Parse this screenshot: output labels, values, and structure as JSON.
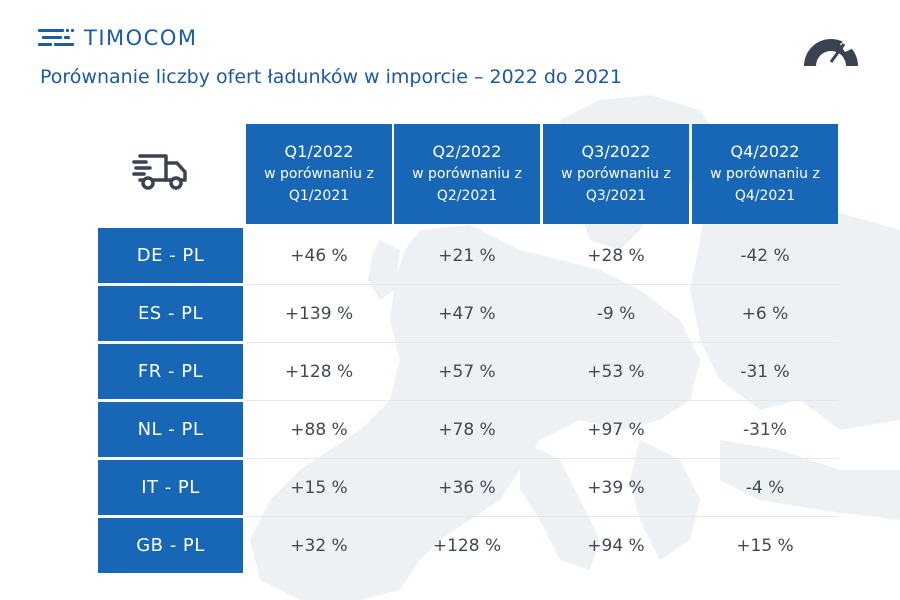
{
  "brand": {
    "logo_text": "TIMOCOM",
    "color": "#1767b6"
  },
  "icons": {
    "logo": "logo-icon",
    "gauge": "gauge-icon",
    "truck": "truck-icon"
  },
  "chart_data": {
    "type": "table",
    "title": "Porównanie liczby ofert ładunków w imporcie – 2022 do 2021",
    "columns": [
      {
        "line1": "Q1/2022",
        "line2": "w porównaniu z",
        "line3": "Q1/2021"
      },
      {
        "line1": "Q2/2022",
        "line2": "w porównaniu z",
        "line3": "Q2/2021"
      },
      {
        "line1": "Q3/2022",
        "line2": "w porównaniu z",
        "line3": "Q3/2021"
      },
      {
        "line1": "Q4/2022",
        "line2": "w porównaniu z",
        "line3": "Q4/2021"
      }
    ],
    "rows": [
      {
        "label": "DE - PL",
        "values": [
          "+46 %",
          "+21 %",
          "+28 %",
          "-42 %"
        ]
      },
      {
        "label": "ES - PL",
        "values": [
          "+139 %",
          "+47 %",
          "-9 %",
          "+6 %"
        ]
      },
      {
        "label": "FR - PL",
        "values": [
          "+128 %",
          "+57 %",
          "+53 %",
          "-31 %"
        ]
      },
      {
        "label": "NL - PL",
        "values": [
          "+88 %",
          "+78 %",
          "+97 %",
          "-31%"
        ]
      },
      {
        "label": "IT - PL",
        "values": [
          "+15 %",
          "+36 %",
          "+39 %",
          "-4 %"
        ]
      },
      {
        "label": "GB - PL",
        "values": [
          "+32 %",
          "+128 %",
          "+94 %",
          "+15 %"
        ]
      }
    ]
  }
}
